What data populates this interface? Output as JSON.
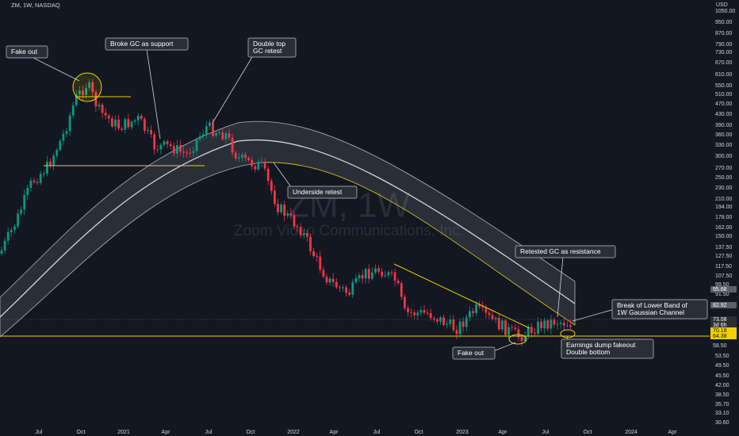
{
  "header": {
    "symbol": "ZM, 1W, NASDAQ"
  },
  "watermark": {
    "ticker": "ZM, 1W",
    "company": "Zoom Video Communications, Inc."
  },
  "price_axis": {
    "currency": "USD",
    "labels": [
      "1050.00",
      "950.00",
      "870.00",
      "790.00",
      "730.00",
      "670.00",
      "610.00",
      "550.00",
      "510.00",
      "470.00",
      "430.00",
      "390.00",
      "360.00",
      "330.00",
      "300.00",
      "270.00",
      "250.00",
      "230.00",
      "210.00",
      "194.00",
      "178.00",
      "162.00",
      "150.00",
      "137.50",
      "127.50",
      "117.50",
      "107.50",
      "99.50",
      "91.50",
      "53.50",
      "49.50",
      "45.50",
      "42.00",
      "38.50",
      "35.70",
      "33.10",
      "30.60"
    ]
  },
  "price_tags": [
    {
      "label": "95.68",
      "kind": "gray"
    },
    {
      "label": "82.92",
      "kind": "gray"
    },
    {
      "label": "73.08",
      "kind": "dark"
    },
    {
      "label": "3d 6h",
      "kind": "dark"
    },
    {
      "label": "70.18",
      "kind": "yellow"
    },
    {
      "label": "64.38",
      "kind": "yellow"
    },
    {
      "label": "58.50",
      "kind": "plain"
    }
  ],
  "time_axis": [
    "Jul",
    "Oct",
    "2021",
    "Apr",
    "Jul",
    "Oct",
    "2022",
    "Apr",
    "Jul",
    "Oct",
    "2023",
    "Apr",
    "Jul",
    "Oct",
    "2024",
    "Apr"
  ],
  "annotations": [
    {
      "lines": [
        "Fake out"
      ]
    },
    {
      "lines": [
        "Broke GC as support"
      ]
    },
    {
      "lines": [
        "Double top",
        "GC retest"
      ]
    },
    {
      "lines": [
        "Underside retest"
      ]
    },
    {
      "lines": [
        "Retested GC as resistance"
      ]
    },
    {
      "lines": [
        "Break of Lower Band of",
        "1W Gaussian Channel"
      ]
    },
    {
      "lines": [
        "Earnings dump fakeout",
        "Double bottom"
      ]
    },
    {
      "lines": [
        "Fake out"
      ]
    }
  ]
}
